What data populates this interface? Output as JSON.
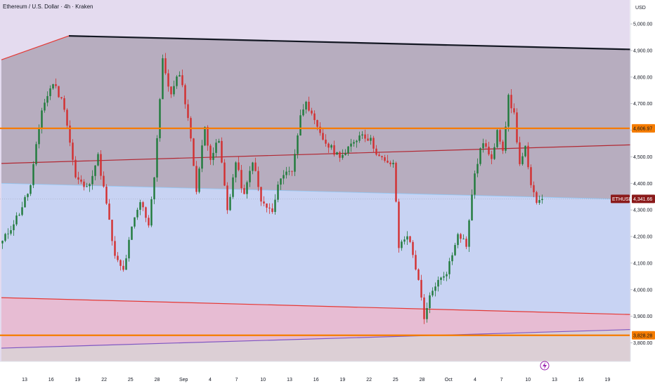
{
  "header": {
    "title": "Ethereum / U.S. Dollar · 4h · Kraken",
    "currency": "USD"
  },
  "chart_data": {
    "type": "candlestick",
    "symbol": "ETHUSD",
    "timeframe": "4h",
    "x_ticks": [
      "13",
      "16",
      "19",
      "22",
      "25",
      "28",
      "Sep",
      "4",
      "7",
      "10",
      "13",
      "16",
      "19",
      "22",
      "25",
      "28",
      "Oct",
      "4",
      "7",
      "10",
      "13",
      "16",
      "19"
    ],
    "y_ticks": [
      3800,
      3900,
      4000,
      4100,
      4200,
      4300,
      4400,
      4500,
      4600,
      4700,
      4800,
      4900,
      5000
    ],
    "y_tick_labels": [
      "3,800.00",
      "3,900.00",
      "4,000.00",
      "4,100.00",
      "4,200.00",
      "4,300.00",
      "4,400.00",
      "4,500.00",
      "4,600.00",
      "4,700.00",
      "4,800.00",
      "4,900.00",
      "5,000.00"
    ],
    "ylim": [
      3730,
      5090
    ],
    "price_path": [
      [
        0,
        4180
      ],
      [
        6,
        4290
      ],
      [
        10,
        4390
      ],
      [
        14,
        4680
      ],
      [
        18,
        4780
      ],
      [
        22,
        4690
      ],
      [
        26,
        4420
      ],
      [
        30,
        4380
      ],
      [
        34,
        4500
      ],
      [
        37,
        4320
      ],
      [
        40,
        4120
      ],
      [
        43,
        4070
      ],
      [
        46,
        4230
      ],
      [
        49,
        4330
      ],
      [
        52,
        4250
      ],
      [
        54,
        4430
      ],
      [
        57,
        4860
      ],
      [
        60,
        4730
      ],
      [
        63,
        4820
      ],
      [
        66,
        4650
      ],
      [
        69,
        4380
      ],
      [
        72,
        4610
      ],
      [
        74,
        4500
      ],
      [
        77,
        4560
      ],
      [
        80,
        4300
      ],
      [
        83,
        4480
      ],
      [
        86,
        4350
      ],
      [
        89,
        4490
      ],
      [
        92,
        4330
      ],
      [
        96,
        4290
      ],
      [
        99,
        4430
      ],
      [
        103,
        4450
      ],
      [
        106,
        4650
      ],
      [
        108,
        4720
      ],
      [
        110,
        4650
      ],
      [
        113,
        4580
      ],
      [
        116,
        4540
      ],
      [
        119,
        4510
      ],
      [
        122,
        4510
      ],
      [
        125,
        4560
      ],
      [
        128,
        4590
      ],
      [
        131,
        4560
      ],
      [
        134,
        4500
      ],
      [
        137,
        4470
      ],
      [
        139,
        4480
      ],
      [
        141,
        4160
      ],
      [
        144,
        4210
      ],
      [
        146,
        4130
      ],
      [
        148,
        4040
      ],
      [
        150,
        3880
      ],
      [
        152,
        3970
      ],
      [
        154,
        4020
      ],
      [
        156,
        4040
      ],
      [
        158,
        4070
      ],
      [
        160,
        4130
      ],
      [
        162,
        4220
      ],
      [
        165,
        4170
      ],
      [
        168,
        4440
      ],
      [
        171,
        4560
      ],
      [
        174,
        4480
      ],
      [
        176,
        4610
      ],
      [
        178,
        4530
      ],
      [
        180,
        4720
      ],
      [
        182,
        4660
      ],
      [
        184,
        4470
      ],
      [
        186,
        4530
      ],
      [
        188,
        4380
      ],
      [
        190,
        4340
      ],
      [
        192,
        4341.66
      ]
    ],
    "lines": [
      {
        "name": "upper-channel-line",
        "color": "#131722",
        "from": [
          24,
          4955
        ],
        "to": [
          240,
          4900
        ]
      },
      {
        "name": "upper-channel-lead-in",
        "color": "#e53935",
        "from": [
          0,
          4865
        ],
        "to": [
          24,
          4955
        ]
      },
      {
        "name": "middle-trend-line",
        "color": "#b22833",
        "from": [
          0,
          4475
        ],
        "to": [
          240,
          4550
        ]
      },
      {
        "name": "lower-trend-line",
        "color": "#e53935",
        "from": [
          0,
          3970
        ],
        "to": [
          240,
          3902
        ]
      },
      {
        "name": "support-trend-line",
        "color": "#7e57c2",
        "from": [
          0,
          3780
        ],
        "to": [
          240,
          3855
        ]
      },
      {
        "name": "channel-base-line",
        "color": "#90caf9",
        "from": [
          0,
          4400
        ],
        "to": [
          240,
          4335
        ]
      }
    ],
    "levels": [
      {
        "name": "resistance",
        "value": 4606.97,
        "label": "4,606.97",
        "color": "#f57c00"
      },
      {
        "name": "support",
        "value": 3828.28,
        "label": "3,828.28",
        "color": "#f57c00"
      }
    ],
    "last_price": {
      "symbol": "ETHUSD",
      "value": 4341.66,
      "label": "4,341.66",
      "color": "#8b1a1a"
    },
    "colors": {
      "up": "#1f7a3a",
      "down": "#d32f2f",
      "top_zone": "#e4dbef",
      "channel_zone": "#b7adbf",
      "blue_zone": "#c8d3f3",
      "pink_zone": "#e7bcd3",
      "bottom_zone": "#dccfd5"
    }
  }
}
